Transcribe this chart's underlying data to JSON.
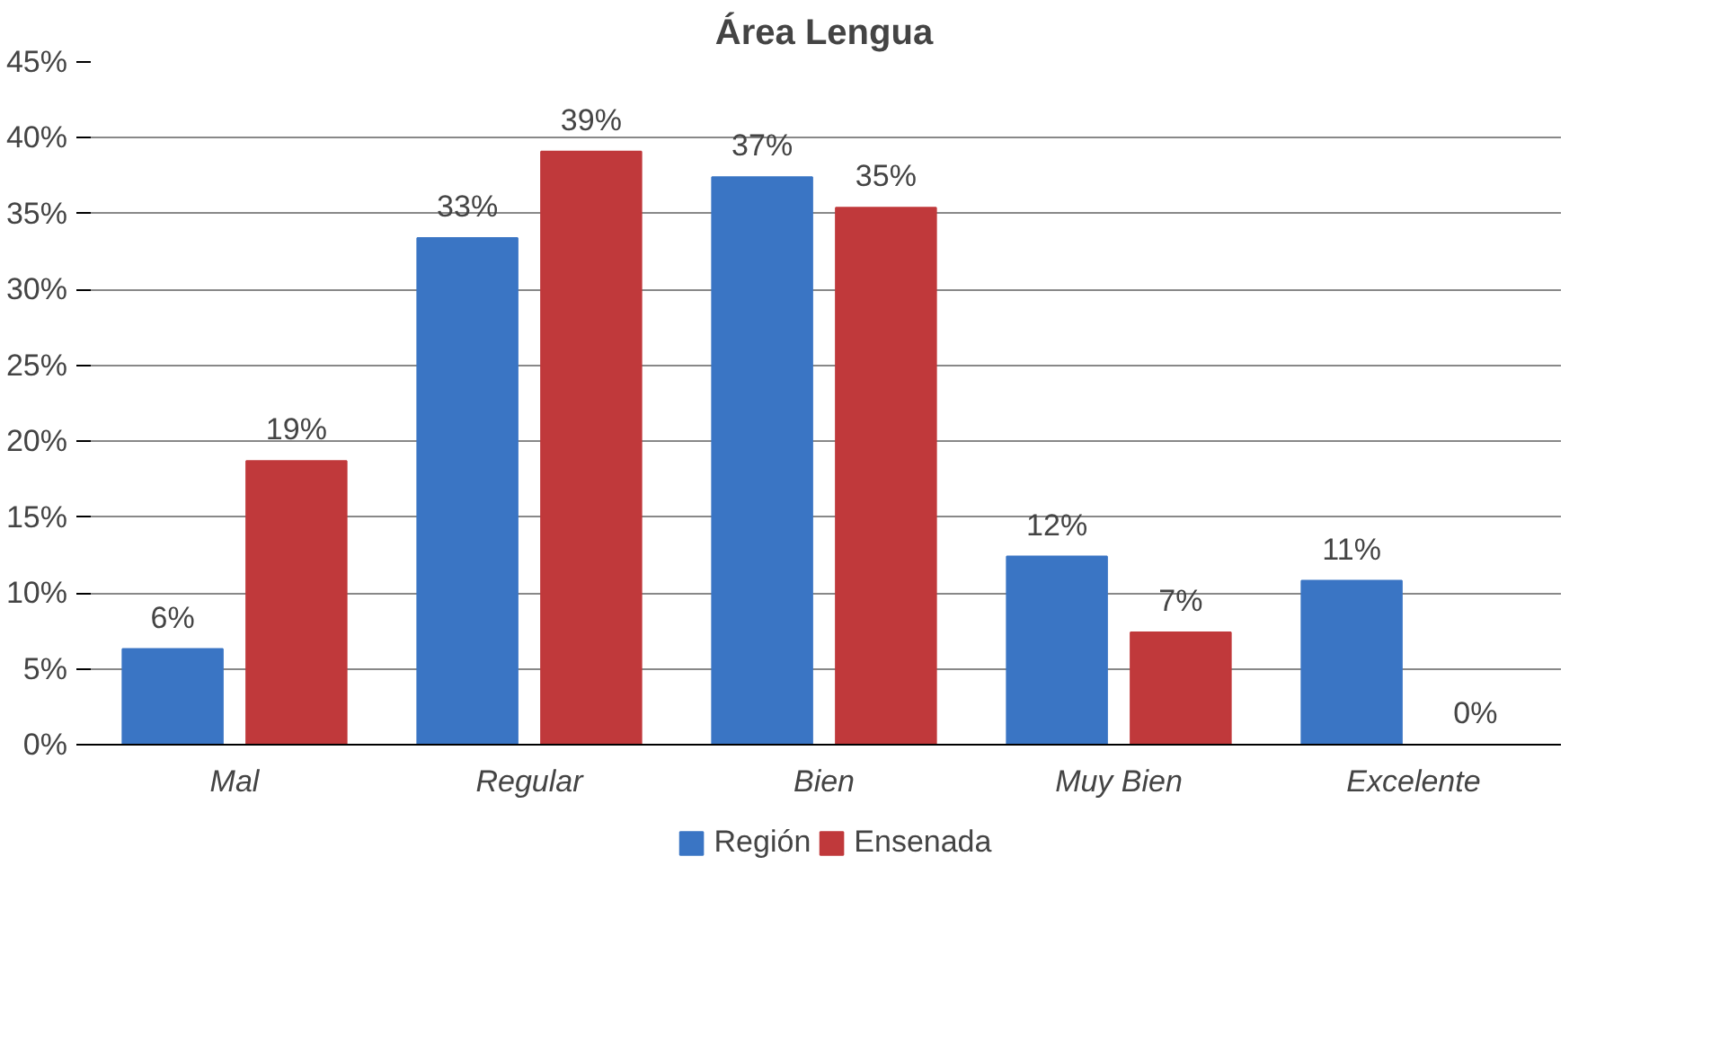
{
  "chart_data": {
    "type": "bar",
    "title": "Área Lengua",
    "categories": [
      "Mal",
      "Regular",
      "Bien",
      "Muy Bien",
      "Excelente"
    ],
    "series": [
      {
        "name": "Región",
        "color": "#3a75c4",
        "values": [
          6.3,
          33.4,
          37.4,
          12.4,
          10.8
        ],
        "value_labels": [
          "6%",
          "33%",
          "37%",
          "12%",
          "11%"
        ]
      },
      {
        "name": "Ensenada",
        "color": "#c0393b",
        "values": [
          18.7,
          39.1,
          35.4,
          7.4,
          0
        ],
        "value_labels": [
          "19%",
          "39%",
          "35%",
          "7%",
          "0%"
        ]
      }
    ],
    "ylim": [
      0,
      45
    ],
    "yticks": [
      {
        "value": 0,
        "label": "0%"
      },
      {
        "value": 5,
        "label": "5%"
      },
      {
        "value": 10,
        "label": "10%"
      },
      {
        "value": 15,
        "label": "15%"
      },
      {
        "value": 20,
        "label": "20%"
      },
      {
        "value": 25,
        "label": "25%"
      },
      {
        "value": 30,
        "label": "30%"
      },
      {
        "value": 35,
        "label": "35%"
      },
      {
        "value": 40,
        "label": "40%"
      },
      {
        "value": 45,
        "label": "45%"
      }
    ],
    "grid": "y",
    "legend": "bottom"
  }
}
